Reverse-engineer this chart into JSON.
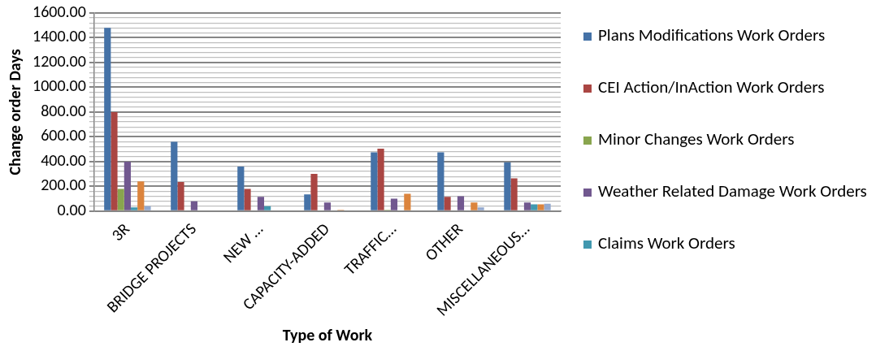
{
  "chart_data": {
    "type": "bar",
    "xlabel": "Type of Work",
    "ylabel": "Change order Days",
    "categories": [
      "3R",
      "BRIDGE PROJECTS",
      "NEW …",
      "CAPACITY-ADDED",
      "TRAFFIC…",
      "OTHER",
      "MISCELLANEOUS…"
    ],
    "series": [
      {
        "name": "Plans Modifications Work Orders",
        "color": "#4572a7",
        "values": [
          1480,
          560,
          360,
          135,
          475,
          475,
          395
        ]
      },
      {
        "name": "CEI Action/InAction Work Orders",
        "color": "#aa4643",
        "values": [
          800,
          235,
          180,
          300,
          505,
          115,
          265
        ]
      },
      {
        "name": "Minor Changes Work Orders",
        "color": "#89a54e",
        "values": [
          180,
          0,
          0,
          0,
          10,
          0,
          0
        ]
      },
      {
        "name": "Weather Related Damage Work Orders",
        "color": "#71588f",
        "values": [
          400,
          80,
          115,
          70,
          100,
          120,
          70
        ]
      },
      {
        "name": "Claims Work Orders",
        "color": "#4198af",
        "values": [
          30,
          0,
          40,
          0,
          0,
          0,
          55
        ]
      },
      {
        "color": "#db843d",
        "values": [
          240,
          0,
          0,
          10,
          140,
          70,
          55
        ]
      },
      {
        "color": "#93a9cf",
        "values": [
          40,
          0,
          null,
          null,
          0,
          30,
          60
        ]
      }
    ],
    "ylim": [
      0,
      1600
    ],
    "yticks": [
      {
        "value": 0,
        "label": "0.00"
      },
      {
        "value": 40,
        "label": null
      },
      {
        "value": 80,
        "label": null
      },
      {
        "value": 120,
        "label": null
      },
      {
        "value": 160,
        "label": null
      },
      {
        "value": 200,
        "label": "200.00"
      },
      {
        "value": 240,
        "label": null
      },
      {
        "value": 280,
        "label": null
      },
      {
        "value": 320,
        "label": null
      },
      {
        "value": 360,
        "label": null
      },
      {
        "value": 400,
        "label": "400.00"
      },
      {
        "value": 440,
        "label": null
      },
      {
        "value": 480,
        "label": null
      },
      {
        "value": 520,
        "label": null
      },
      {
        "value": 560,
        "label": null
      },
      {
        "value": 600,
        "label": "600.00"
      },
      {
        "value": 640,
        "label": null
      },
      {
        "value": 680,
        "label": null
      },
      {
        "value": 720,
        "label": null
      },
      {
        "value": 760,
        "label": null
      },
      {
        "value": 800,
        "label": "800.00"
      },
      {
        "value": 840,
        "label": null
      },
      {
        "value": 880,
        "label": null
      },
      {
        "value": 920,
        "label": null
      },
      {
        "value": 960,
        "label": null
      },
      {
        "value": 1000,
        "label": "1000.00"
      },
      {
        "value": 1040,
        "label": null
      },
      {
        "value": 1080,
        "label": null
      },
      {
        "value": 1120,
        "label": null
      },
      {
        "value": 1160,
        "label": null
      },
      {
        "value": 1200,
        "label": "1200.00"
      },
      {
        "value": 1240,
        "label": null
      },
      {
        "value": 1280,
        "label": null
      },
      {
        "value": 1320,
        "label": null
      },
      {
        "value": 1360,
        "label": null
      },
      {
        "value": 1400,
        "label": "1400.00"
      },
      {
        "value": 1440,
        "label": null
      },
      {
        "value": 1480,
        "label": null
      },
      {
        "value": 1520,
        "label": null
      },
      {
        "value": 1560,
        "label": null
      },
      {
        "value": 1600,
        "label": "1600.00"
      }
    ],
    "grid": true,
    "legend": "right"
  }
}
